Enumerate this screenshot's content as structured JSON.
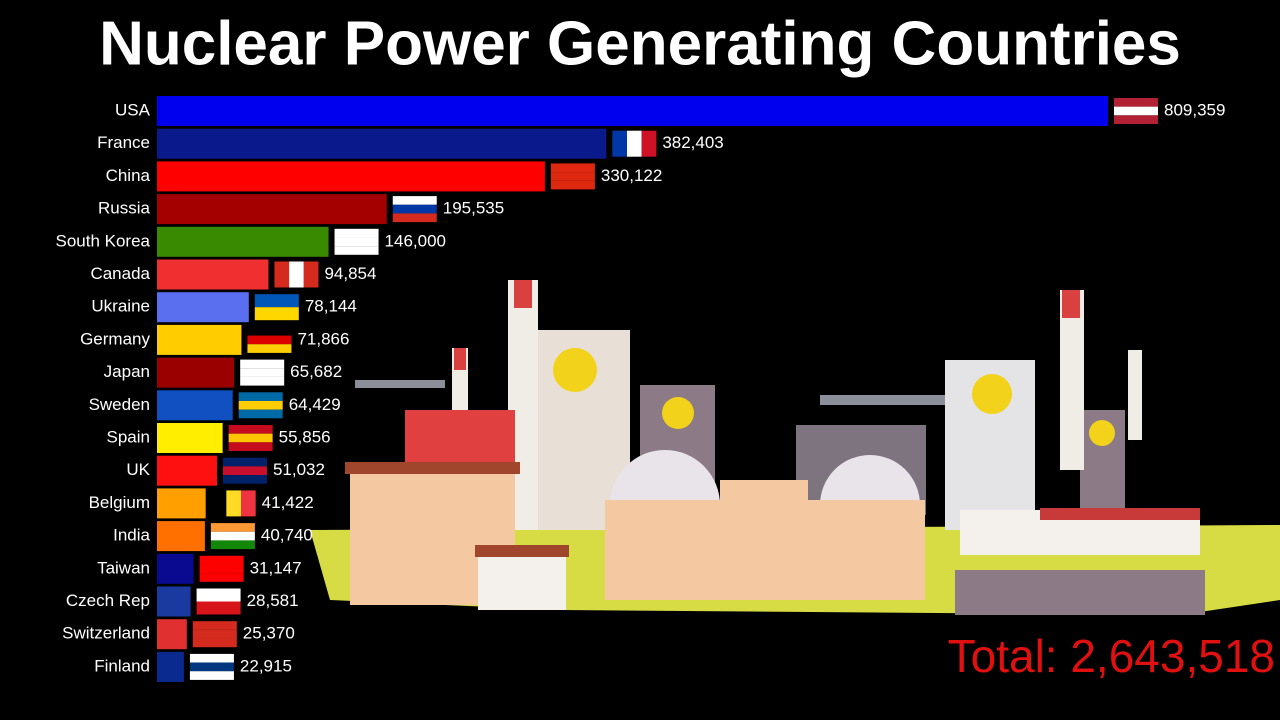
{
  "chart_data": {
    "type": "bar_horizontal",
    "title": "Nuclear Power Generating Countries",
    "categories": [
      "USA",
      "France",
      "China",
      "Russia",
      "South Korea",
      "Canada",
      "Ukraine",
      "Germany",
      "Japan",
      "Sweden",
      "Spain",
      "UK",
      "Belgium",
      "India",
      "Taiwan",
      "Czech Rep",
      "Switzerland",
      "Finland"
    ],
    "values": [
      809359,
      382403,
      330122,
      195535,
      146000,
      94854,
      78144,
      71866,
      65682,
      64429,
      55856,
      51032,
      41422,
      40740,
      31147,
      28581,
      25370,
      22915
    ],
    "value_labels": [
      "809,359",
      "382,403",
      "330,122",
      "195,535",
      "146,000",
      "94,854",
      "78,144",
      "71,866",
      "65,682",
      "64,429",
      "55,856",
      "51,032",
      "41,422",
      "40,740",
      "31,147",
      "28,581",
      "25,370",
      "22,915"
    ],
    "colors": [
      "#0000ee",
      "#0a1a8c",
      "#ff0000",
      "#a50000",
      "#3a8a00",
      "#f03030",
      "#5a6ef0",
      "#ffcc00",
      "#9a0000",
      "#1050c0",
      "#ffee00",
      "#ff1010",
      "#ffa000",
      "#ff7000",
      "#0a0a90",
      "#1a3aa0",
      "#e03030",
      "#0a2a90"
    ],
    "total_label": "Total: 2,643,518"
  }
}
